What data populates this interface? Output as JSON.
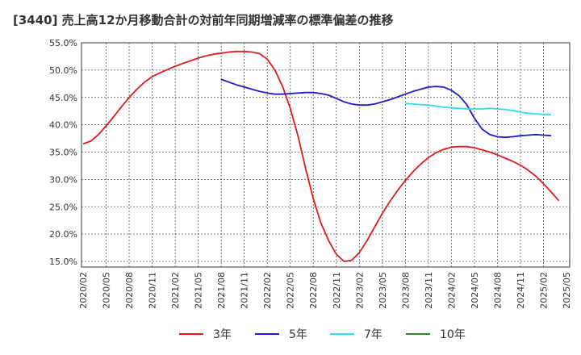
{
  "chart_data": {
    "type": "line",
    "title": "[3440]  売上高12か月移動合計の対前年同期増減率の標準偏差の推移",
    "xlabel": "",
    "ylabel": "",
    "ylim": [
      14,
      55
    ],
    "y_ticks": [
      "55.0%",
      "50.0%",
      "45.0%",
      "40.0%",
      "35.0%",
      "30.0%",
      "25.0%",
      "20.0%",
      "15.0%"
    ],
    "y_tick_values": [
      55,
      50,
      45,
      40,
      35,
      30,
      25,
      20,
      15
    ],
    "x_ticks": [
      "2020/02",
      "2020/05",
      "2020/08",
      "2020/11",
      "2021/02",
      "2021/05",
      "2021/08",
      "2021/11",
      "2022/02",
      "2022/05",
      "2022/08",
      "2022/11",
      "2023/02",
      "2023/05",
      "2023/08",
      "2023/11",
      "2024/02",
      "2024/05",
      "2024/08",
      "2024/11",
      "2025/02",
      "2025/05"
    ],
    "x_start": "2020/02",
    "grid": true,
    "legend_position": "bottom",
    "series": [
      {
        "name": "3年",
        "color": "#dd1c1c",
        "points": [
          [
            "2020/02",
            36.5
          ],
          [
            "2020/03",
            37.0
          ],
          [
            "2020/04",
            38.2
          ],
          [
            "2020/05",
            39.8
          ],
          [
            "2020/06",
            41.5
          ],
          [
            "2020/07",
            43.3
          ],
          [
            "2020/08",
            45.0
          ],
          [
            "2020/09",
            46.5
          ],
          [
            "2020/10",
            47.8
          ],
          [
            "2020/11",
            48.8
          ],
          [
            "2020/12",
            49.5
          ],
          [
            "2021/01",
            50.1
          ],
          [
            "2021/02",
            50.7
          ],
          [
            "2021/03",
            51.2
          ],
          [
            "2021/04",
            51.7
          ],
          [
            "2021/05",
            52.2
          ],
          [
            "2021/06",
            52.6
          ],
          [
            "2021/07",
            52.9
          ],
          [
            "2021/08",
            53.1
          ],
          [
            "2021/09",
            53.3
          ],
          [
            "2021/10",
            53.4
          ],
          [
            "2021/11",
            53.4
          ],
          [
            "2021/12",
            53.3
          ],
          [
            "2022/01",
            53.0
          ],
          [
            "2022/02",
            52.0
          ],
          [
            "2022/03",
            50.0
          ],
          [
            "2022/04",
            47.0
          ],
          [
            "2022/05",
            43.0
          ],
          [
            "2022/06",
            38.0
          ],
          [
            "2022/07",
            32.0
          ],
          [
            "2022/08",
            26.5
          ],
          [
            "2022/09",
            22.0
          ],
          [
            "2022/10",
            18.8
          ],
          [
            "2022/11",
            16.3
          ],
          [
            "2022/12",
            15.0
          ],
          [
            "2023/01",
            15.2
          ],
          [
            "2023/02",
            16.6
          ],
          [
            "2023/03",
            18.8
          ],
          [
            "2023/04",
            21.3
          ],
          [
            "2023/05",
            23.8
          ],
          [
            "2023/06",
            26.0
          ],
          [
            "2023/07",
            28.0
          ],
          [
            "2023/08",
            29.8
          ],
          [
            "2023/09",
            31.4
          ],
          [
            "2023/10",
            32.8
          ],
          [
            "2023/11",
            34.0
          ],
          [
            "2023/12",
            34.9
          ],
          [
            "2024/01",
            35.5
          ],
          [
            "2024/02",
            35.9
          ],
          [
            "2024/03",
            36.0
          ],
          [
            "2024/04",
            36.0
          ],
          [
            "2024/05",
            35.8
          ],
          [
            "2024/06",
            35.4
          ],
          [
            "2024/07",
            35.0
          ],
          [
            "2024/08",
            34.5
          ],
          [
            "2024/09",
            33.9
          ],
          [
            "2024/10",
            33.3
          ],
          [
            "2024/11",
            32.6
          ],
          [
            "2024/12",
            31.7
          ],
          [
            "2025/01",
            30.6
          ],
          [
            "2025/02",
            29.2
          ],
          [
            "2025/03",
            27.7
          ],
          [
            "2025/04",
            26.1
          ]
        ]
      },
      {
        "name": "5年",
        "color": "#1c1cc8",
        "points": [
          [
            "2021/08",
            48.3
          ],
          [
            "2021/09",
            47.8
          ],
          [
            "2021/10",
            47.3
          ],
          [
            "2021/11",
            46.9
          ],
          [
            "2021/12",
            46.5
          ],
          [
            "2022/01",
            46.1
          ],
          [
            "2022/02",
            45.8
          ],
          [
            "2022/03",
            45.6
          ],
          [
            "2022/04",
            45.6
          ],
          [
            "2022/05",
            45.7
          ],
          [
            "2022/06",
            45.8
          ],
          [
            "2022/07",
            45.9
          ],
          [
            "2022/08",
            45.9
          ],
          [
            "2022/09",
            45.7
          ],
          [
            "2022/10",
            45.4
          ],
          [
            "2022/11",
            44.8
          ],
          [
            "2022/12",
            44.2
          ],
          [
            "2023/01",
            43.8
          ],
          [
            "2023/02",
            43.6
          ],
          [
            "2023/03",
            43.6
          ],
          [
            "2023/04",
            43.8
          ],
          [
            "2023/05",
            44.2
          ],
          [
            "2023/06",
            44.6
          ],
          [
            "2023/07",
            45.1
          ],
          [
            "2023/08",
            45.6
          ],
          [
            "2023/09",
            46.1
          ],
          [
            "2023/10",
            46.5
          ],
          [
            "2023/11",
            46.9
          ],
          [
            "2023/12",
            47.0
          ],
          [
            "2024/01",
            46.9
          ],
          [
            "2024/02",
            46.3
          ],
          [
            "2024/03",
            45.3
          ],
          [
            "2024/04",
            43.7
          ],
          [
            "2024/05",
            41.2
          ],
          [
            "2024/06",
            39.2
          ],
          [
            "2024/07",
            38.2
          ],
          [
            "2024/08",
            37.8
          ],
          [
            "2024/09",
            37.7
          ],
          [
            "2024/10",
            37.8
          ],
          [
            "2024/11",
            38.0
          ],
          [
            "2024/12",
            38.1
          ],
          [
            "2025/01",
            38.2
          ],
          [
            "2025/02",
            38.1
          ],
          [
            "2025/03",
            38.0
          ]
        ]
      },
      {
        "name": "7年",
        "color": "#33d9f0",
        "points": [
          [
            "2023/08",
            43.9
          ],
          [
            "2023/09",
            43.8
          ],
          [
            "2023/10",
            43.7
          ],
          [
            "2023/11",
            43.6
          ],
          [
            "2023/12",
            43.4
          ],
          [
            "2024/01",
            43.2
          ],
          [
            "2024/02",
            43.1
          ],
          [
            "2024/03",
            43.0
          ],
          [
            "2024/04",
            42.9
          ],
          [
            "2024/05",
            42.9
          ],
          [
            "2024/06",
            42.9
          ],
          [
            "2024/07",
            43.0
          ],
          [
            "2024/08",
            42.9
          ],
          [
            "2024/09",
            42.8
          ],
          [
            "2024/10",
            42.6
          ],
          [
            "2024/11",
            42.3
          ],
          [
            "2024/12",
            42.1
          ],
          [
            "2025/01",
            42.0
          ],
          [
            "2025/02",
            41.9
          ],
          [
            "2025/03",
            41.9
          ]
        ]
      },
      {
        "name": "10年",
        "color": "#228b22",
        "points": []
      }
    ]
  }
}
